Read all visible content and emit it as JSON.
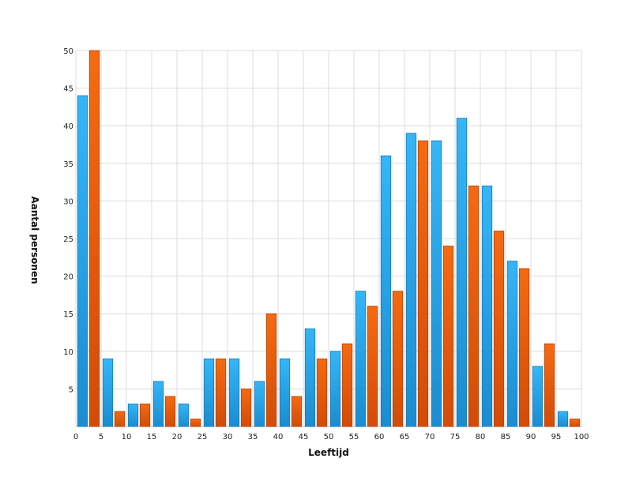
{
  "chart_data": {
    "type": "bar",
    "title": "",
    "xlabel": "Leeftijd",
    "ylabel": "Aantal personen",
    "x_ticks": [
      "0",
      "5",
      "10",
      "15",
      "20",
      "25",
      "30",
      "35",
      "40",
      "45",
      "50",
      "55",
      "60",
      "65",
      "70",
      "75",
      "80",
      "85",
      "90",
      "95",
      "100"
    ],
    "y_ticks": [
      "5",
      "10",
      "15",
      "20",
      "25",
      "30",
      "35",
      "40",
      "45",
      "50"
    ],
    "ylim": [
      0,
      50
    ],
    "xlim": [
      0,
      100
    ],
    "grid": true,
    "legend": "none",
    "bin_width": 5,
    "series": [
      {
        "color": "#2ea8ec",
        "values": [
          44,
          9,
          3,
          6,
          3,
          9,
          9,
          6,
          9,
          13,
          10,
          18,
          36,
          39,
          38,
          41,
          32,
          22,
          8,
          2
        ]
      },
      {
        "color": "#ee5a0e",
        "values": [
          50,
          2,
          3,
          4,
          1,
          9,
          5,
          15,
          4,
          9,
          11,
          16,
          18,
          38,
          24,
          32,
          26,
          21,
          11,
          1
        ]
      }
    ]
  }
}
